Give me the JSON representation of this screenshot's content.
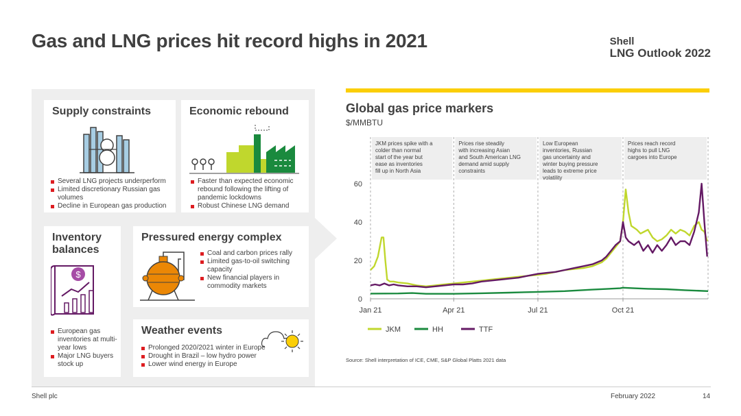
{
  "slide": {
    "title": "Gas and LNG prices hit record highs in 2021",
    "brand_line1": "Shell",
    "brand_line2": "LNG Outlook 2022",
    "footer_left": "Shell plc",
    "footer_date": "February 2022",
    "page_number": "14"
  },
  "colors": {
    "jkm": "#c0d72d",
    "hh": "#1a8a3e",
    "ttf": "#641964",
    "accent_yellow": "#fbce07",
    "bullet_red": "#dd1d21"
  },
  "drivers": {
    "supply": {
      "heading": "Supply constraints",
      "icon": "lng-plant-icon",
      "bullets": [
        "Several LNG projects underperform",
        "Limited discretionary Russian gas volumes",
        "Decline in European gas production"
      ]
    },
    "economic": {
      "heading": "Economic rebound",
      "icon": "factory-icon",
      "bullets": [
        "Faster than expected economic rebound following the lifting of pandemic lockdowns",
        "Robust Chinese LNG demand"
      ]
    },
    "inventory": {
      "heading": "Inventory balances",
      "icon": "storage-chart-icon",
      "bullets": [
        "European gas inventories at multi-year lows",
        "Major LNG buyers stock up"
      ]
    },
    "energy": {
      "heading": "Pressured energy complex",
      "icon": "tank-icon",
      "bullets": [
        "Coal and carbon prices rally",
        "Limited gas-to-oil switching capacity",
        "New financial players in commodity markets"
      ]
    },
    "weather": {
      "heading": "Weather events",
      "icon": "sun-cloud-icon",
      "bullets": [
        "Prolonged 2020/2021 winter in Europe",
        "Drought in Brazil – low hydro power",
        "Lower wind energy in Europe"
      ]
    }
  },
  "chart": {
    "title": "Global gas price markers",
    "unit": "$/MMBTU",
    "source": "Source: Shell interpretation of ICE, CME, S&P Global Platts 2021 data",
    "annotations": [
      "JKM prices spike with a colder than normal start of the year but ease as inventories fill up in North Asia",
      "Prices rise steadily with increasing Asian and South American LNG demand amid supply constraints",
      "Low European inventories, Russian gas uncertainty and winter buying pressure leads to extreme price volatility",
      "Prices reach record highs to pull LNG cargoes into Europe"
    ]
  },
  "chart_data": {
    "type": "line",
    "title": "Global gas price markers",
    "ylabel": "$/MMBTU",
    "ylim": [
      0,
      70
    ],
    "yticks": [
      0,
      20,
      40,
      60
    ],
    "xlim": [
      0,
      365
    ],
    "xticks": [
      {
        "day": 0,
        "label": "Jan 21"
      },
      {
        "day": 90,
        "label": "Apr 21"
      },
      {
        "day": 181,
        "label": "Jul 21"
      },
      {
        "day": 273,
        "label": "Oct 21"
      }
    ],
    "phase_dividers_day": [
      0,
      90,
      181,
      273,
      365
    ],
    "series": [
      {
        "name": "JKM",
        "x": [
          0,
          4,
          8,
          12,
          14,
          16,
          18,
          21,
          25,
          30,
          40,
          50,
          60,
          70,
          80,
          90,
          100,
          110,
          120,
          130,
          140,
          150,
          160,
          170,
          181,
          190,
          200,
          210,
          220,
          230,
          240,
          250,
          255,
          260,
          265,
          270,
          273,
          276,
          279,
          282,
          285,
          288,
          292,
          296,
          300,
          305,
          310,
          315,
          320,
          325,
          330,
          335,
          340,
          345,
          350,
          355,
          358,
          361,
          364
        ],
        "values": [
          15,
          17,
          22,
          32,
          32,
          20,
          10,
          9,
          9,
          8.5,
          8,
          7,
          6.5,
          7,
          7.5,
          8,
          8.5,
          9,
          9.5,
          10,
          10.5,
          11,
          11.5,
          12,
          12.5,
          13,
          14,
          15,
          15.5,
          16,
          17,
          19,
          21,
          24,
          27,
          30,
          40,
          57,
          45,
          38,
          37,
          36,
          34,
          35,
          36,
          32,
          30,
          31,
          33,
          36,
          34,
          36,
          35,
          33,
          38,
          40,
          36,
          35,
          30
        ]
      },
      {
        "name": "HH",
        "x": [
          0,
          30,
          45,
          60,
          90,
          120,
          150,
          181,
          210,
          240,
          270,
          273,
          285,
          300,
          320,
          340,
          365
        ],
        "values": [
          2.7,
          2.8,
          3.0,
          2.6,
          2.6,
          2.9,
          3.2,
          3.6,
          4.0,
          4.8,
          5.5,
          5.8,
          5.5,
          5.2,
          5.0,
          4.5,
          4.0
        ]
      },
      {
        "name": "TTF",
        "x": [
          0,
          5,
          10,
          15,
          20,
          25,
          30,
          40,
          50,
          60,
          70,
          80,
          90,
          100,
          110,
          120,
          130,
          140,
          150,
          160,
          170,
          181,
          190,
          200,
          210,
          220,
          230,
          240,
          250,
          255,
          260,
          265,
          270,
          273,
          276,
          279,
          285,
          290,
          295,
          300,
          305,
          310,
          315,
          320,
          325,
          330,
          335,
          340,
          345,
          350,
          355,
          358,
          361,
          364
        ],
        "values": [
          7,
          7.5,
          7,
          8,
          7,
          7.5,
          7,
          6.5,
          6.5,
          6,
          6.5,
          7,
          7.5,
          7.5,
          8,
          9,
          9.5,
          10,
          10.5,
          11,
          12,
          13,
          13.5,
          14,
          15,
          16,
          17,
          18,
          20,
          22,
          25,
          28,
          30,
          40,
          32,
          30,
          28,
          30,
          25,
          28,
          24,
          28,
          25,
          28,
          32,
          28,
          30,
          30,
          28,
          35,
          45,
          60,
          40,
          22
        ]
      }
    ],
    "legend": "bottom"
  }
}
